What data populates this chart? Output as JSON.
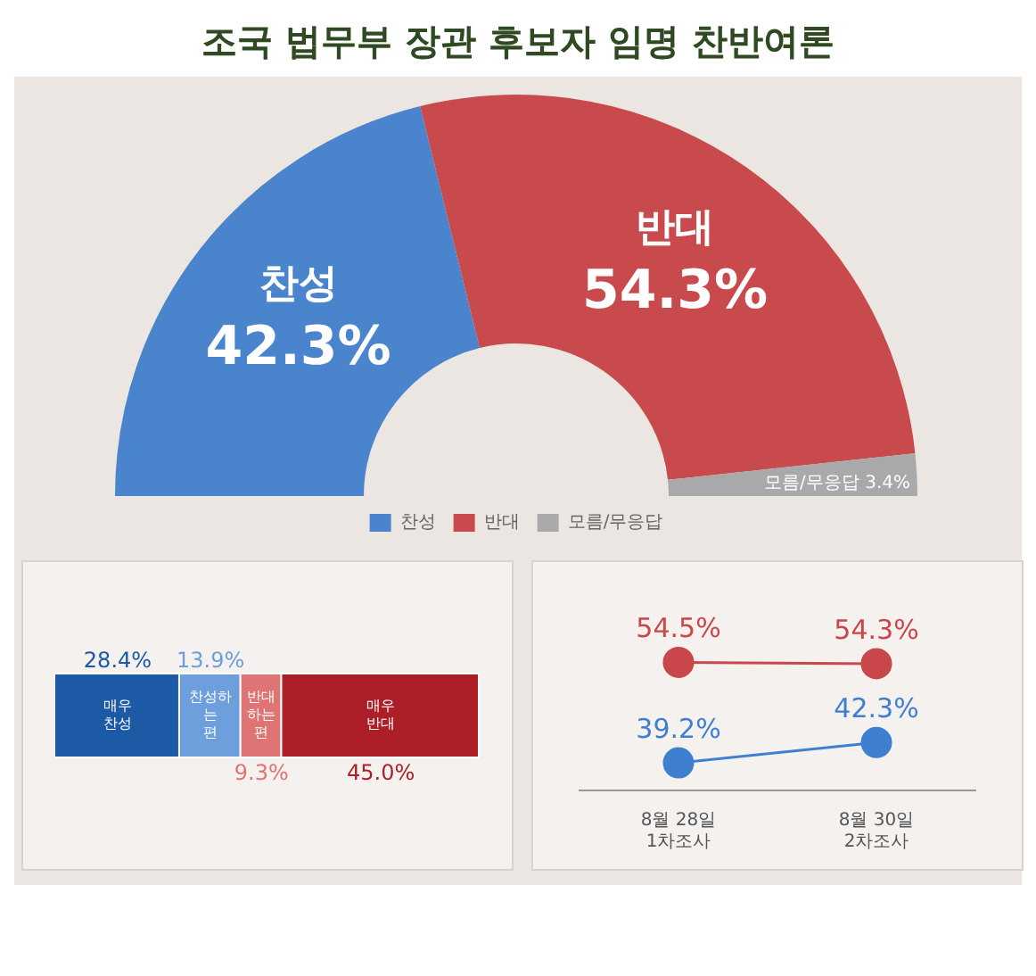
{
  "chart_data": [
    {
      "type": "donut",
      "title": "조국 법무부 장관 후보자 임명 찬반여론",
      "categories": [
        "찬성",
        "반대",
        "모름/무응답"
      ],
      "values": [
        42.3,
        54.3,
        3.4
      ],
      "colors": [
        "#4a84cc",
        "#c94a4c",
        "#a9a9ab"
      ],
      "value_labels": [
        "42.3%",
        "54.3%",
        "3.4%"
      ],
      "legend": "bottom"
    },
    {
      "type": "bar",
      "orientation": "horizontal",
      "stacked": true,
      "categories": [
        null
      ],
      "series": [
        {
          "name": "매우 찬성",
          "color": "#1d5aa6",
          "values": [
            28.4
          ],
          "value_labels": [
            "28.4%"
          ]
        },
        {
          "name": "찬성하는 편",
          "color": "#6c9fdb",
          "values": [
            13.9
          ],
          "value_labels": [
            "13.9%"
          ]
        },
        {
          "name": "반대하는 편",
          "color": "#df7474",
          "values": [
            9.3
          ],
          "value_labels": [
            "9.3%"
          ]
        },
        {
          "name": "매우 반대",
          "color": "#ad1f28",
          "values": [
            45.0
          ],
          "value_labels": [
            "45.0%"
          ]
        }
      ],
      "legend": false,
      "grid": false
    },
    {
      "type": "line",
      "categories": [
        "8월 28일 1차조사",
        "8월 30일 2차조사"
      ],
      "series": [
        {
          "color": "#c9474b",
          "values": [
            54.5,
            54.3
          ],
          "value_labels": [
            "54.5%",
            "54.3%"
          ]
        },
        {
          "color": "#3f7fcf",
          "values": [
            39.2,
            42.3
          ],
          "value_labels": [
            "39.2%",
            "42.3%"
          ]
        }
      ],
      "marker": "circle",
      "line_style": "solid",
      "legend": false,
      "grid": false,
      "tick_labels": "x"
    }
  ]
}
